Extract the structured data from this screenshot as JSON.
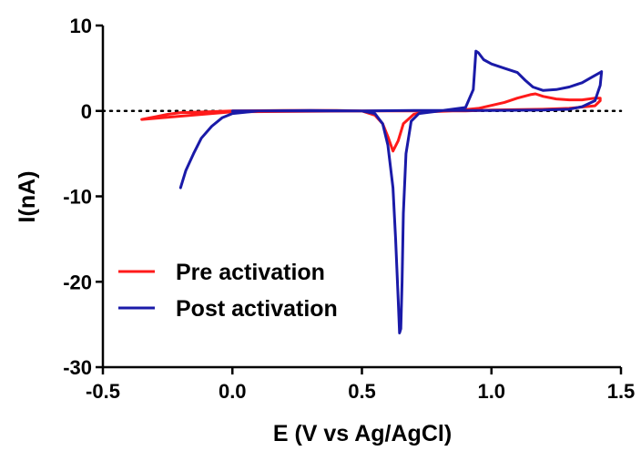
{
  "chart_data": {
    "type": "line",
    "xlabel": "E (V vs Ag/AgCl)",
    "ylabel": "I(nA)",
    "xlim": [
      -0.5,
      1.5
    ],
    "ylim": [
      -30,
      10
    ],
    "xticks": [
      -0.5,
      0.0,
      0.5,
      1.0,
      1.5
    ],
    "xtick_labels": [
      "-0.5",
      "0.0",
      "0.5",
      "1.0",
      "1.5"
    ],
    "yticks": [
      -30,
      -20,
      -10,
      0,
      10
    ],
    "ytick_labels": [
      "-30",
      "-20",
      "-10",
      "0",
      "10"
    ],
    "grid": false,
    "zero_line": {
      "style": "dotted",
      "y": 0
    },
    "legend_position": "lower-left",
    "series": [
      {
        "name": "Pre activation",
        "color": "#ff1a1a",
        "x": [
          -0.35,
          -0.3,
          -0.25,
          -0.2,
          -0.1,
          0.0,
          0.2,
          0.4,
          0.5,
          0.55,
          0.58,
          0.6,
          0.62,
          0.64,
          0.66,
          0.7,
          0.75,
          0.85,
          0.95,
          1.05,
          1.1,
          1.15,
          1.17,
          1.2,
          1.25,
          1.3,
          1.35,
          1.4,
          1.42,
          1.42,
          1.4,
          1.3,
          1.2,
          1.0,
          0.9,
          0.8,
          0.5,
          0.0,
          -0.35
        ],
        "y": [
          -1.0,
          -0.7,
          -0.4,
          -0.2,
          -0.1,
          0.0,
          0.05,
          0.05,
          0.0,
          -0.5,
          -1.5,
          -3.0,
          -4.7,
          -3.5,
          -1.5,
          -0.4,
          -0.1,
          0.0,
          0.3,
          1.0,
          1.5,
          1.9,
          2.0,
          1.7,
          1.4,
          1.3,
          1.3,
          1.5,
          1.5,
          1.2,
          0.6,
          0.3,
          0.2,
          0.1,
          0.0,
          0.0,
          0.0,
          -0.1,
          -1.0
        ]
      },
      {
        "name": "Post activation",
        "color": "#1a1aa8",
        "x": [
          -0.2,
          -0.18,
          -0.15,
          -0.12,
          -0.08,
          -0.04,
          0.0,
          0.1,
          0.3,
          0.5,
          0.55,
          0.58,
          0.6,
          0.62,
          0.63,
          0.64,
          0.645,
          0.65,
          0.655,
          0.66,
          0.67,
          0.69,
          0.72,
          0.8,
          0.9,
          0.93,
          0.94,
          0.95,
          0.97,
          1.0,
          1.05,
          1.1,
          1.13,
          1.16,
          1.2,
          1.25,
          1.3,
          1.35,
          1.39,
          1.42,
          1.425,
          1.42,
          1.4,
          1.35,
          1.3,
          1.2,
          1.0,
          0.9,
          0.7,
          0.5,
          0.3,
          0.1,
          0.0
        ],
        "y": [
          -9.0,
          -7.0,
          -5.0,
          -3.2,
          -1.8,
          -0.8,
          -0.3,
          0.0,
          0.05,
          0.0,
          -0.3,
          -1.5,
          -4.0,
          -9.0,
          -15.0,
          -22.0,
          -26.0,
          -25.5,
          -20.0,
          -12.0,
          -5.0,
          -1.2,
          -0.3,
          0.0,
          0.4,
          2.5,
          7.0,
          6.8,
          6.0,
          5.5,
          5.0,
          4.5,
          3.6,
          2.8,
          2.4,
          2.5,
          2.8,
          3.3,
          4.0,
          4.5,
          4.6,
          3.0,
          1.2,
          0.5,
          0.2,
          0.1,
          0.05,
          0.05,
          0.05,
          0.0,
          0.0,
          0.0,
          0.0
        ]
      }
    ]
  }
}
